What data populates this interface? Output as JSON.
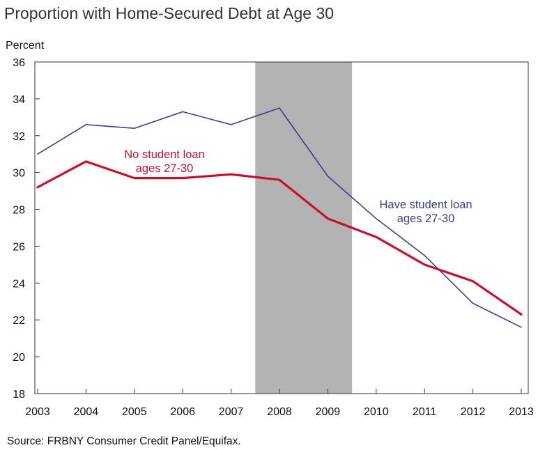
{
  "chart_data": {
    "type": "line",
    "title": "Proportion with Home-Secured Debt at Age 30",
    "ylabel": "Percent",
    "xlabel": "",
    "x": [
      "2003",
      "2004",
      "2005",
      "2006",
      "2007",
      "2008",
      "2009",
      "2010",
      "2011",
      "2012",
      "2013"
    ],
    "ylim": [
      18,
      36
    ],
    "yticks": [
      18,
      20,
      22,
      24,
      26,
      28,
      30,
      32,
      34,
      36
    ],
    "recession_shading": {
      "start": 2007.5,
      "end": 2009.5,
      "color": "#b3b3b3"
    },
    "series": [
      {
        "name": "Have student loan ages 27-30",
        "color": "#3d3d8f",
        "values": [
          31.0,
          32.6,
          32.4,
          33.3,
          32.6,
          33.5,
          29.8,
          27.5,
          25.5,
          22.9,
          21.6
        ]
      },
      {
        "name": "No student loan ages 27-30",
        "color": "#c8102e",
        "values": [
          29.2,
          30.6,
          29.7,
          29.7,
          29.9,
          29.6,
          27.5,
          26.5,
          25.0,
          24.1,
          22.3
        ]
      }
    ],
    "annotations": [
      {
        "series": 1,
        "lines": [
          "No student loan",
          "ages 27-30"
        ]
      },
      {
        "series": 0,
        "lines": [
          "Have student loan",
          "ages 27-30"
        ]
      }
    ],
    "source": "Source: FRBNY Consumer Credit Panel/Equifax.",
    "grid": false,
    "legend": "none"
  }
}
